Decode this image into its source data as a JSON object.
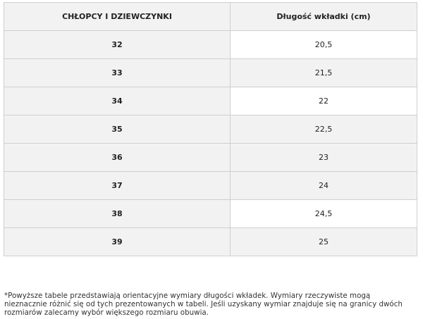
{
  "table": {
    "header": [
      "CHŁOPCY I DZIEWCZYNKI",
      "Długość wkładki (cm)"
    ],
    "rows": [
      [
        "32",
        "20,5"
      ],
      [
        "33",
        "21,5"
      ],
      [
        "34",
        "22"
      ],
      [
        "35",
        "22,5"
      ],
      [
        "36",
        "23"
      ],
      [
        "37",
        "24"
      ],
      [
        "38",
        "24,5"
      ],
      [
        "39",
        "25"
      ]
    ]
  },
  "footnote": [
    "*Powyższe tabele przedstawiają orientacyjne wymiary długości wkładek. Wymiary rzeczywiste mogą",
    "nieznacznie różnić się od tych prezentowanych w tabeli. Jeśli uzyskany wymiar znajduje się na granicy dwóch",
    "rozmiarów zalecamy wybór większego rozmiaru obuwia."
  ]
}
